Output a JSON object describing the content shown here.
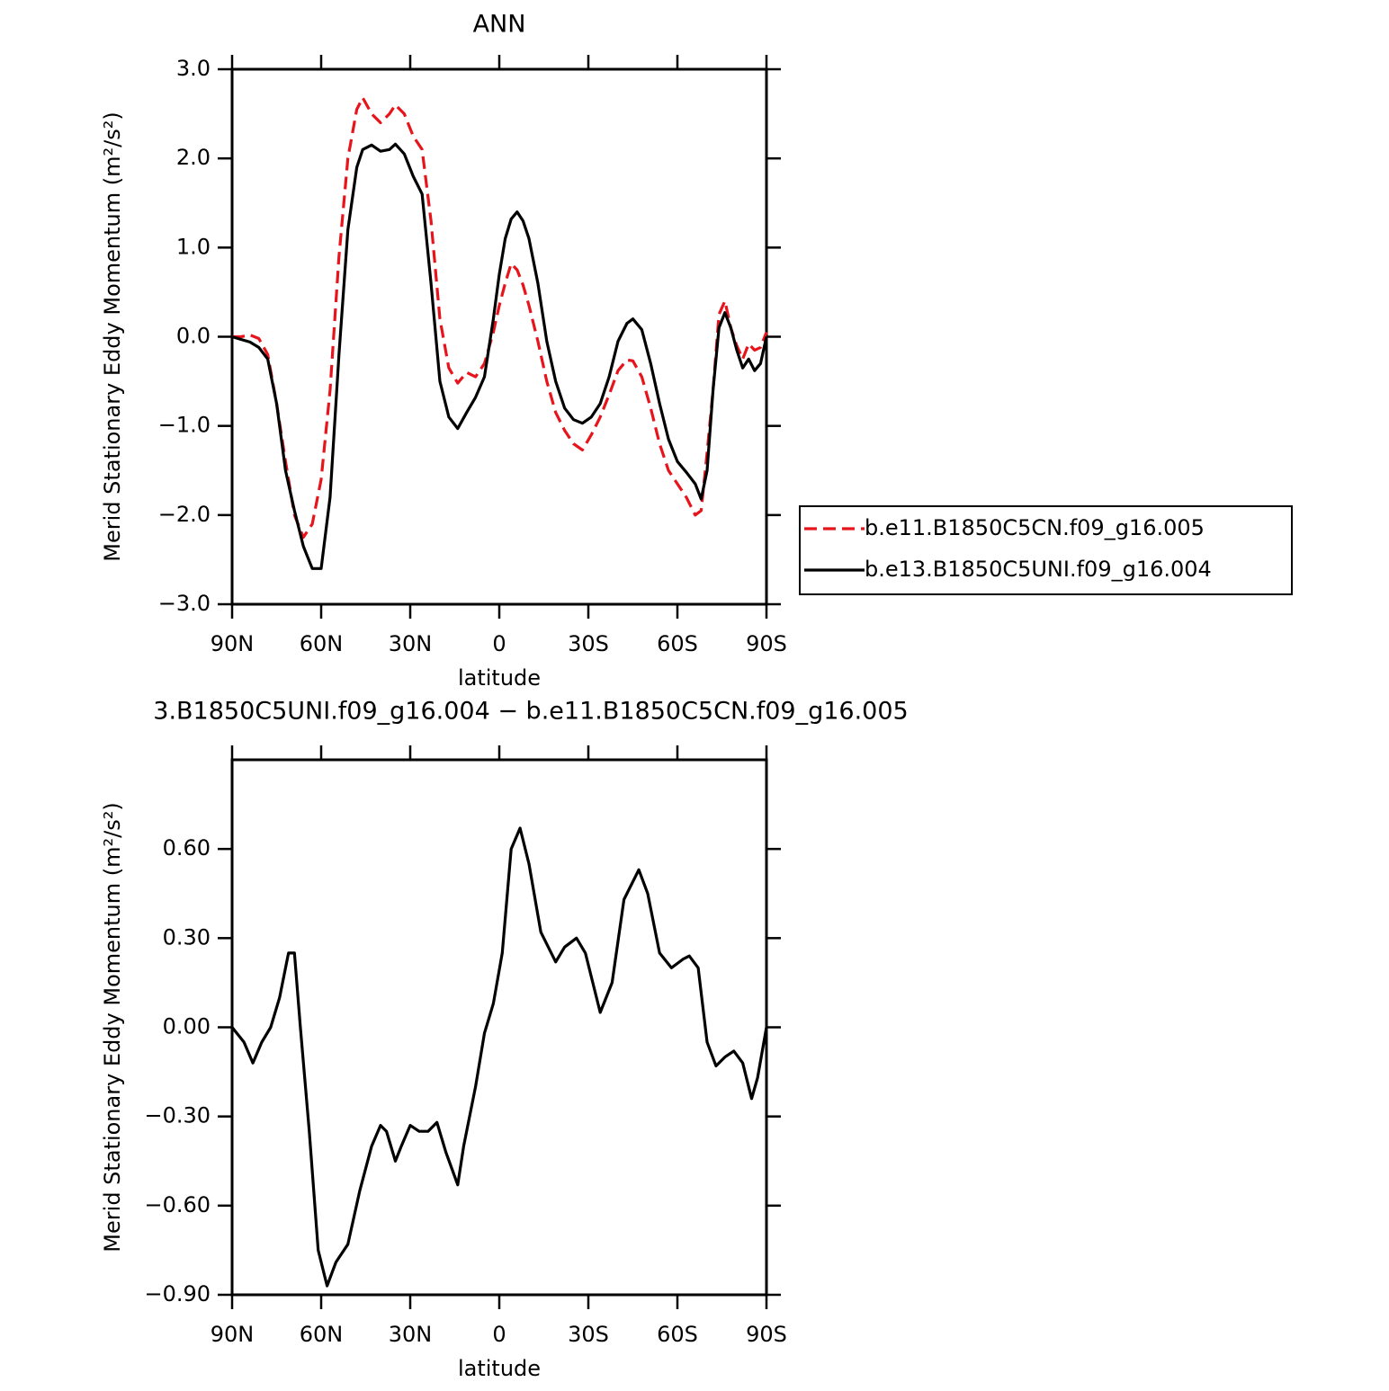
{
  "chart_data": [
    {
      "type": "line",
      "title": "ANN",
      "x_label": "latitude",
      "y_label": "Merid Stationary Eddy Momentum (m²/s²)",
      "x": [
        90,
        87,
        84,
        81,
        78,
        75,
        72,
        69,
        66,
        63,
        60,
        57,
        54,
        51,
        48,
        46,
        43,
        40,
        37,
        35,
        32,
        29,
        26,
        23,
        20,
        17,
        14,
        11,
        8,
        5,
        2,
        0,
        -2,
        -4,
        -6,
        -8,
        -10,
        -13,
        -16,
        -19,
        -22,
        -25,
        -28,
        -31,
        -34,
        -37,
        -40,
        -43,
        -45,
        -48,
        -51,
        -54,
        -57,
        -60,
        -63,
        -66,
        -68,
        -70,
        -72,
        -74,
        -76,
        -78,
        -80,
        -82,
        -84,
        -86,
        -88,
        -90
      ],
      "series": [
        {
          "name": "b.e11.B1850C5CN.f09_g16.005",
          "color": "#e8141c",
          "dash": "dashed",
          "values": [
            0,
            0,
            0.02,
            -0.02,
            -0.2,
            -0.75,
            -1.4,
            -2.0,
            -2.25,
            -2.1,
            -1.6,
            -0.6,
            0.9,
            2.0,
            2.55,
            2.68,
            2.5,
            2.4,
            2.5,
            2.6,
            2.5,
            2.25,
            2.1,
            1.3,
            0.2,
            -0.35,
            -0.52,
            -0.4,
            -0.45,
            -0.3,
            0.05,
            0.35,
            0.6,
            0.82,
            0.75,
            0.58,
            0.35,
            -0.05,
            -0.5,
            -0.85,
            -1.05,
            -1.2,
            -1.27,
            -1.1,
            -0.9,
            -0.65,
            -0.38,
            -0.26,
            -0.27,
            -0.45,
            -0.8,
            -1.2,
            -1.5,
            -1.65,
            -1.8,
            -2.0,
            -1.95,
            -1.3,
            -0.6,
            0.25,
            0.4,
            0.1,
            -0.1,
            -0.25,
            -0.08,
            -0.15,
            -0.12,
            0.05
          ]
        },
        {
          "name": "b.e13.B1850C5UNI.f09_g16.004",
          "color": "#000000",
          "dash": "solid",
          "values": [
            0,
            -0.03,
            -0.06,
            -0.12,
            -0.25,
            -0.75,
            -1.5,
            -1.95,
            -2.35,
            -2.6,
            -2.6,
            -1.8,
            -0.2,
            1.2,
            1.9,
            2.1,
            2.15,
            2.08,
            2.1,
            2.16,
            2.05,
            1.8,
            1.6,
            0.6,
            -0.5,
            -0.9,
            -1.03,
            -0.85,
            -0.68,
            -0.45,
            0.2,
            0.7,
            1.1,
            1.32,
            1.4,
            1.3,
            1.1,
            0.6,
            -0.05,
            -0.5,
            -0.8,
            -0.93,
            -0.97,
            -0.9,
            -0.75,
            -0.45,
            -0.05,
            0.15,
            0.2,
            0.08,
            -0.3,
            -0.75,
            -1.15,
            -1.4,
            -1.52,
            -1.65,
            -1.82,
            -1.5,
            -0.6,
            0.1,
            0.27,
            0.1,
            -0.15,
            -0.35,
            -0.25,
            -0.38,
            -0.3,
            0
          ]
        }
      ],
      "xlim": [
        90,
        -90
      ],
      "xticks": [
        {
          "value": 90,
          "label": "90N"
        },
        {
          "value": 60,
          "label": "60N"
        },
        {
          "value": 30,
          "label": "30N"
        },
        0,
        {
          "value": -30,
          "label": "30S"
        },
        {
          "value": -60,
          "label": "60S"
        },
        {
          "value": -90,
          "label": "90S"
        }
      ],
      "ylim": [
        -3,
        3
      ],
      "yticks": [
        {
          "value": -3,
          "label": "−3.0"
        },
        {
          "value": -2,
          "label": "−2.0"
        },
        {
          "value": -1,
          "label": "−1.0"
        },
        {
          "value": 0,
          "label": "0.0"
        },
        {
          "value": 1,
          "label": "1.0"
        },
        {
          "value": 2,
          "label": "2.0"
        },
        {
          "value": 3,
          "label": "3.0"
        }
      ],
      "legend": "right"
    },
    {
      "type": "line",
      "title": "3.B1850C5UNI.f09_g16.004 − b.e11.B1850C5CN.f09_g16.005",
      "x_label": "latitude",
      "y_label": "Merid Stationary Eddy Momentum (m²/s²)",
      "x": [
        90,
        86,
        83,
        80,
        77,
        74,
        71,
        69,
        67,
        64,
        61,
        58,
        55,
        51,
        47,
        43,
        40,
        38,
        35,
        33,
        30,
        27,
        24,
        21,
        18,
        14,
        12,
        8,
        5,
        2,
        -1,
        -4,
        -7,
        -10,
        -14,
        -19,
        -22,
        -26,
        -29,
        -34,
        -38,
        -42,
        -47,
        -50,
        -54,
        -58,
        -62,
        -64,
        -67,
        -70,
        -73,
        -76,
        -79,
        -82,
        -85,
        -87,
        -90
      ],
      "series": [
        {
          "color": "#000000",
          "dash": "solid",
          "values": [
            0,
            -0.05,
            -0.12,
            -0.05,
            0,
            0.1,
            0.25,
            0.25,
            0,
            -0.35,
            -0.75,
            -0.87,
            -0.79,
            -0.73,
            -0.55,
            -0.4,
            -0.33,
            -0.35,
            -0.45,
            -0.4,
            -0.33,
            -0.35,
            -0.35,
            -0.32,
            -0.42,
            -0.53,
            -0.4,
            -0.2,
            -0.02,
            0.08,
            0.25,
            0.6,
            0.67,
            0.55,
            0.32,
            0.22,
            0.27,
            0.3,
            0.25,
            0.05,
            0.15,
            0.43,
            0.53,
            0.45,
            0.25,
            0.2,
            0.23,
            0.24,
            0.2,
            -0.05,
            -0.13,
            -0.1,
            -0.08,
            -0.12,
            -0.24,
            -0.17,
            0
          ]
        }
      ],
      "xlim": [
        90,
        -90
      ],
      "xticks": [
        {
          "value": 90,
          "label": "90N"
        },
        {
          "value": 60,
          "label": "60N"
        },
        {
          "value": 30,
          "label": "30N"
        },
        0,
        {
          "value": -30,
          "label": "30S"
        },
        {
          "value": -60,
          "label": "60S"
        },
        {
          "value": -90,
          "label": "90S"
        }
      ],
      "ylim": [
        -0.9,
        0.9
      ],
      "yticks": [
        {
          "value": -0.9,
          "label": "−0.90"
        },
        {
          "value": -0.6,
          "label": "−0.60"
        },
        {
          "value": -0.3,
          "label": "−0.30"
        },
        {
          "value": 0,
          "label": "0.00"
        },
        {
          "value": 0.3,
          "label": "0.30"
        },
        {
          "value": 0.6,
          "label": "0.60"
        }
      ]
    }
  ]
}
